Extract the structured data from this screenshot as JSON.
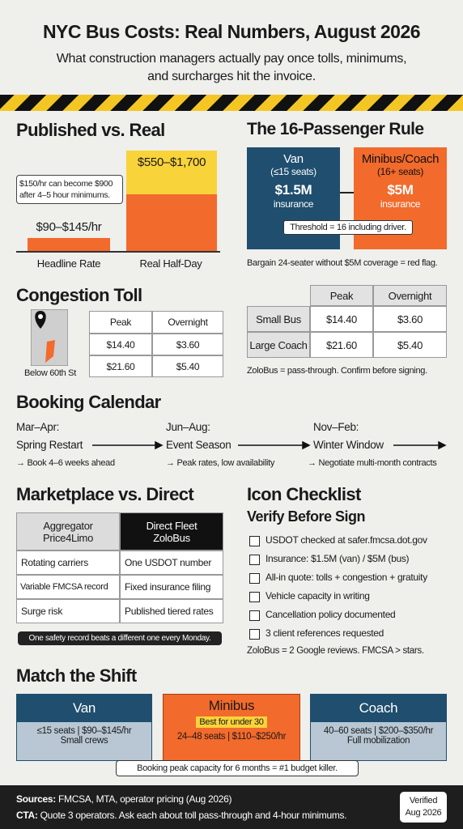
{
  "header": {
    "title": "NYC Bus Costs: Real Numbers, August 2026",
    "subtitle": "What construction managers actually pay once tolls, minimums, and surcharges hit the invoice."
  },
  "published": {
    "title": "Published vs. Real",
    "callout": "$150/hr can become $900 after 4–5 hour minimums.",
    "headline_label": "$90–$145/hr",
    "real_label": "$550–$1,700",
    "categories": [
      "Headline Rate",
      "Real Half-Day"
    ]
  },
  "rule": {
    "title": "The 16-Passenger Rule",
    "van": {
      "name": "Van",
      "seats": "(≤15 seats)",
      "amount": "$1.5M",
      "unit": "insurance"
    },
    "minibus": {
      "name": "Minibus/Coach",
      "seats": "(16+ seats)",
      "amount": "$5M",
      "unit": "insurance"
    },
    "threshold": "Threshold = 16 including driver.",
    "note": "Bargain 24-seater without $5M coverage = red flag."
  },
  "congestion": {
    "title": "Congestion Toll",
    "map_label": "Below 60th St",
    "left_table": {
      "header": [
        "Peak",
        "Overnight"
      ],
      "rows": [
        [
          "$14.40",
          "$3.60"
        ],
        [
          "$21.60",
          "$5.40"
        ]
      ]
    },
    "right_table": {
      "header": [
        "Peak",
        "Overnight"
      ],
      "rows": [
        [
          "Small Bus",
          "$14.40",
          "$3.60"
        ],
        [
          "Large Coach",
          "$21.60",
          "$5.40"
        ]
      ]
    },
    "note": "ZoloBus = pass-through. Confirm before signing."
  },
  "calendar": {
    "title": "Booking Calendar",
    "stages": [
      {
        "period": "Mar–Apr:",
        "name": "Spring Restart",
        "tip": "→ Book 4–6 weeks ahead"
      },
      {
        "period": "Jun–Aug:",
        "name": "Event Season",
        "tip": "→ Peak rates, low availability"
      },
      {
        "period": "Nov–Feb:",
        "name": "Winter Window",
        "tip": "→ Negotiate multi-month contracts"
      }
    ]
  },
  "marketplace": {
    "title": "Marketplace vs. Direct",
    "columns": [
      {
        "name": "Aggregator",
        "sub": "Price4Limo"
      },
      {
        "name": "Direct Fleet",
        "sub": "ZoloBus"
      }
    ],
    "rows": [
      [
        "Rotating carriers",
        "One USDOT number"
      ],
      [
        "Variable FMCSA record",
        "Fixed insurance filing"
      ],
      [
        "Surge risk",
        "Published tiered rates"
      ]
    ],
    "caption": "One safety record beats a different one every Monday."
  },
  "checklist": {
    "title": "Icon Checklist",
    "subtitle": "Verify Before Sign",
    "items": [
      "USDOT checked at safer.fmcsa.dot.gov",
      "Insurance: $1.5M (van) / $5M (bus)",
      "All-in quote: tolls + congestion + gratuity",
      "Vehicle capacity in writing",
      "Cancellation policy documented",
      "3 client references requested"
    ],
    "note": "ZoloBus = 2 Google reviews. FMCSA > stars."
  },
  "shift": {
    "title": "Match the Shift",
    "cards": [
      {
        "name": "Van",
        "detail": "≤15 seats | $90–$145/hr",
        "sub": "Small crews"
      },
      {
        "name": "Minibus",
        "badge": "Best for under 30",
        "detail": "24–48 seats | $110–$250/hr"
      },
      {
        "name": "Coach",
        "detail": "40–60 seats | $200–$350/hr",
        "sub": "Full mobilization"
      }
    ],
    "callout": "Booking peak capacity for 6 months = #1 budget killer."
  },
  "footer": {
    "sources_label": "Sources:",
    "sources": "FMCSA, MTA, operator pricing (Aug 2026)",
    "cta_label": "CTA:",
    "cta": "Quote 3 operators. Ask each about toll pass-through and 4-hour minimums.",
    "badge": [
      "Verified",
      "Aug 2026"
    ]
  }
}
